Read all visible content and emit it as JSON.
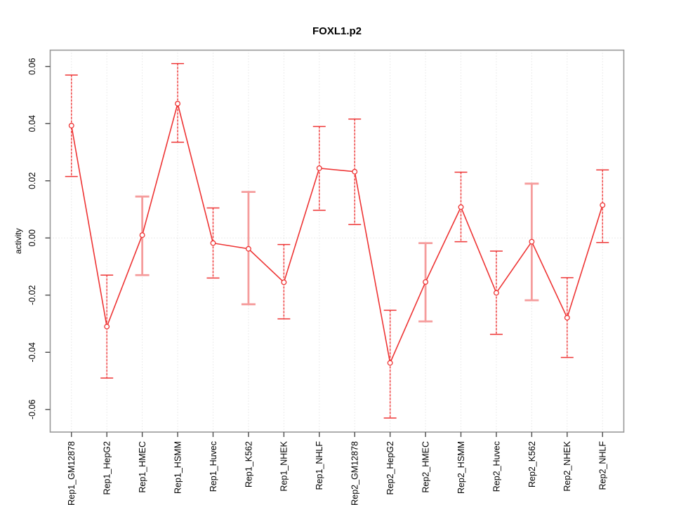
{
  "figure": {
    "title": "FOXL1.p2"
  },
  "chart_data": {
    "type": "line",
    "title": "FOXL1.p2",
    "xlabel": "",
    "ylabel": "activity",
    "legend_position": "none",
    "grid": {
      "vertical_dotted_per_category": true,
      "horizontal_dotted_zero_line": true
    },
    "categories": [
      "Rep1_GM12878",
      "Rep1_HepG2",
      "Rep1_HMEC",
      "Rep1_HSMM",
      "Rep1_Huvec",
      "Rep1_K562",
      "Rep1_NHEK",
      "Rep1_NHLF",
      "Rep2_GM12878",
      "Rep2_HepG2",
      "Rep2_HMEC",
      "Rep2_HSMM",
      "Rep2_Huvec",
      "Rep2_K562",
      "Rep2_NHEK",
      "Rep2_NHLF"
    ],
    "series": [
      {
        "name": "activity",
        "means": [
          0.0393,
          -0.031,
          0.001,
          0.047,
          -0.0018,
          -0.0038,
          -0.0155,
          0.0244,
          0.0232,
          -0.0437,
          -0.0154,
          0.0108,
          -0.0192,
          -0.0013,
          -0.0279,
          0.0115
        ],
        "lower": [
          0.0215,
          -0.049,
          -0.013,
          0.0335,
          -0.014,
          -0.0232,
          -0.0283,
          0.0097,
          0.0047,
          -0.063,
          -0.0292,
          -0.0013,
          -0.0337,
          -0.0218,
          -0.0418,
          -0.0016
        ],
        "upper": [
          0.057,
          -0.013,
          0.0145,
          0.061,
          0.0105,
          0.0161,
          -0.0023,
          0.039,
          0.0416,
          -0.0253,
          -0.0018,
          0.023,
          -0.0046,
          0.019,
          -0.0139,
          0.0238
        ]
      }
    ],
    "yticks": [
      -0.06,
      -0.04,
      -0.02,
      0,
      0.02,
      0.04,
      0.06
    ],
    "ytick_labels": [
      "-0.06",
      "-0.04",
      "-0.02",
      "0.00",
      "0.02",
      "0.04",
      "0.06"
    ],
    "ylim": [
      -0.0679,
      0.0657
    ],
    "whisker_thick_categories": [
      "Rep1_HMEC",
      "Rep1_K562",
      "Rep2_HMEC",
      "Rep2_K562"
    ],
    "colors": {
      "line": "#ee3434",
      "point_fill": "#ffffff",
      "error_bar_soft": "#f8b9b9",
      "error_bar_thick": "#f59c9c",
      "grid": "#d8d8d8",
      "box": "#9a9a9a",
      "tick": "#4a4a4a",
      "text": "#000000"
    }
  }
}
